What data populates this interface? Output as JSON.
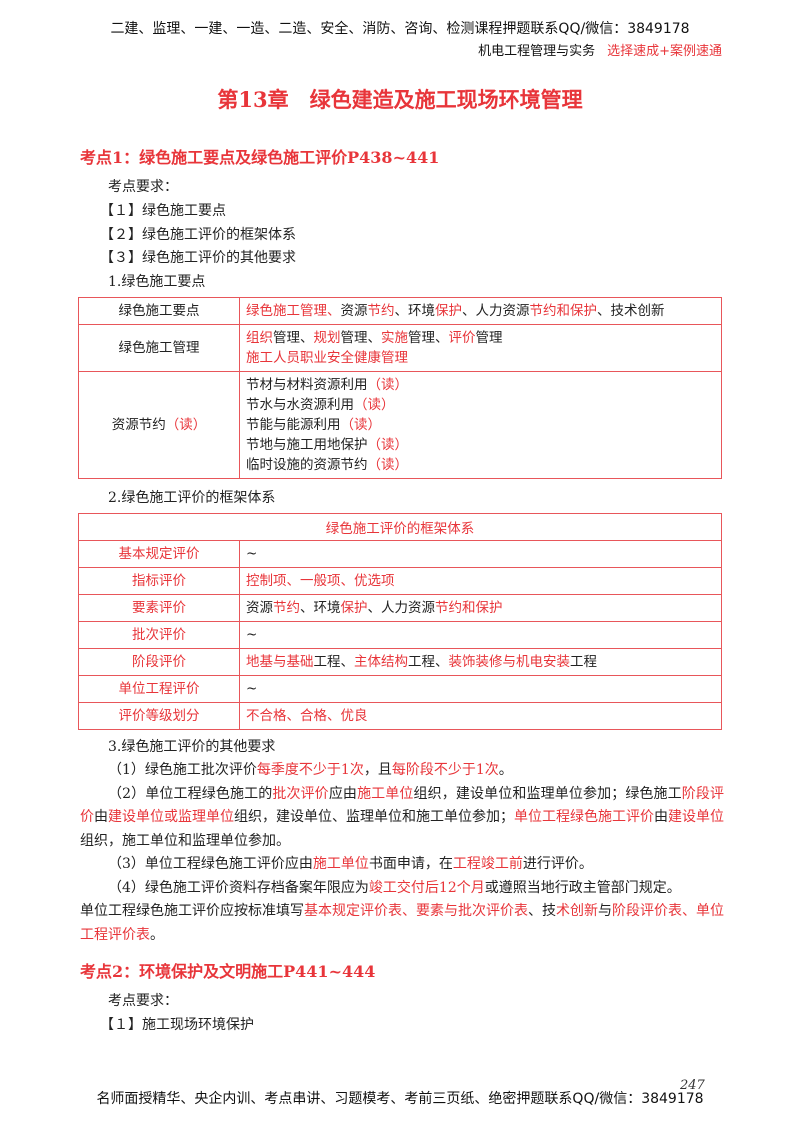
{
  "header": {
    "line1": "二建、监理、一建、一造、二造、安全、消防、咨询、检测课程押题联系QQ/微信：3849178",
    "subject": "机电工程管理与实务",
    "slogan": "选择速成+案例速通"
  },
  "chapter_title": "第13章　绿色建造及施工现场环境管理",
  "section1": {
    "heading": "考点1：绿色施工要点及绿色施工评价P438~441",
    "req_label": "考点要求：",
    "reqs": [
      "【１】绿色施工要点",
      "【２】绿色施工评价的框架体系",
      "【３】绿色施工评价的其他要求"
    ],
    "sub1": "1.绿色施工要点",
    "table1": [
      {
        "label": [
          [
            "绿色施工要点",
            0
          ]
        ],
        "lines": [
          [
            [
              "绿色施工管理、",
              1
            ],
            [
              "资源",
              0
            ],
            [
              "节约",
              1
            ],
            [
              "、环境",
              0
            ],
            [
              "保护",
              1
            ],
            [
              "、人力资源",
              0
            ],
            [
              "节约和保护",
              1
            ],
            [
              "、技术创新",
              0
            ]
          ]
        ]
      },
      {
        "label": [
          [
            "绿色施工管理",
            0
          ]
        ],
        "lines": [
          [
            [
              "组织",
              1
            ],
            [
              "管理、",
              0
            ],
            [
              "规划",
              1
            ],
            [
              "管理、",
              0
            ],
            [
              "实施",
              1
            ],
            [
              "管理、",
              0
            ],
            [
              "评价",
              1
            ],
            [
              "管理",
              0
            ]
          ],
          [
            [
              "施工人员职业安全健康管理",
              1
            ]
          ]
        ]
      },
      {
        "label": [
          [
            "资源节约",
            0
          ],
          [
            "（读）",
            1
          ]
        ],
        "lines": [
          [
            [
              "节材与材料资源利用",
              0
            ],
            [
              "（读）",
              1
            ]
          ],
          [
            [
              "节水与水资源利用",
              0
            ],
            [
              "（读）",
              1
            ]
          ],
          [
            [
              "节能与能源利用",
              0
            ],
            [
              "（读）",
              1
            ]
          ],
          [
            [
              "节地与施工用地保护",
              0
            ],
            [
              "（读）",
              1
            ]
          ],
          [
            [
              "临时设施的资源节约",
              0
            ],
            [
              "（读）",
              1
            ]
          ]
        ]
      }
    ],
    "sub2": "2.绿色施工评价的框架体系",
    "table2_title": "绿色施工评价的框架体系",
    "table2": [
      {
        "label": "基本规定评价",
        "value": [
          [
            "~",
            0
          ]
        ]
      },
      {
        "label": "指标评价",
        "value": [
          [
            "控制项、一般项、优选项",
            1
          ]
        ]
      },
      {
        "label": "要素评价",
        "value": [
          [
            "资源",
            0
          ],
          [
            "节约",
            1
          ],
          [
            "、环境",
            0
          ],
          [
            "保护",
            1
          ],
          [
            "、人力资源",
            0
          ],
          [
            "节约和保护",
            1
          ]
        ]
      },
      {
        "label": "批次评价",
        "value": [
          [
            "~",
            0
          ]
        ]
      },
      {
        "label": "阶段评价",
        "value": [
          [
            "地基与基础",
            1
          ],
          [
            "工程、",
            0
          ],
          [
            "主体结构",
            1
          ],
          [
            "工程、",
            0
          ],
          [
            "装饰装修与机电安装",
            1
          ],
          [
            "工程",
            0
          ]
        ]
      },
      {
        "label": "单位工程评价",
        "value": [
          [
            "~",
            0
          ]
        ]
      },
      {
        "label": "评价等级划分",
        "value": [
          [
            "不合格、合格、优良",
            1
          ]
        ]
      }
    ],
    "sub3": "3.绿色施工评价的其他要求",
    "paras": [
      [
        [
          "（1）绿色施工批次评价",
          0
        ],
        [
          "每季度不少于1次",
          1
        ],
        [
          "，且",
          0
        ],
        [
          "每阶段不少于1次",
          1
        ],
        [
          "。",
          0
        ]
      ],
      [
        [
          "（2）单位工程绿色施工的",
          0
        ],
        [
          "批次评价",
          1
        ],
        [
          "应由",
          0
        ],
        [
          "施工单位",
          1
        ],
        [
          "组织，建设单位和监理单位参加；绿色施工",
          0
        ],
        [
          "阶段评价",
          1
        ],
        [
          "由",
          0
        ],
        [
          "建设单位或监理单位",
          1
        ],
        [
          "组织，建设单位、监理单位和施工单位参加；",
          0
        ],
        [
          "单位工程绿色施工评价",
          1
        ],
        [
          "由",
          0
        ],
        [
          "建设单位",
          1
        ],
        [
          "组织，施工单位和监理单位参加。",
          0
        ]
      ],
      [
        [
          "（3）单位工程绿色施工评价应由",
          0
        ],
        [
          "施工单位",
          1
        ],
        [
          "书面申请，在",
          0
        ],
        [
          "工程竣工前",
          1
        ],
        [
          "进行评价。",
          0
        ]
      ],
      [
        [
          "（4）绿色施工评价资料存档备案年限应为",
          0
        ],
        [
          "竣工交付后12个月",
          1
        ],
        [
          "或遵照当地行政主管部门规定。",
          0
        ]
      ],
      [
        [
          "单位工程绿色施工评价应按标准填写",
          0
        ],
        [
          "基本规定评价表、要素与批次评价表",
          1
        ],
        [
          "、技",
          0
        ],
        [
          "术创新",
          1
        ],
        [
          "与",
          0
        ],
        [
          "阶段评价表、单位工程评价表",
          1
        ],
        [
          "。",
          0
        ]
      ]
    ]
  },
  "section2": {
    "heading": "考点2：环境保护及文明施工P441~444",
    "req_label": "考点要求：",
    "reqs": [
      "【１】施工现场环境保护"
    ]
  },
  "footer": {
    "text": "名师面授精华、央企内训、考点串讲、习题模考、考前三页纸、绝密押题联系QQ/微信：3849178",
    "page_number": "247"
  },
  "colors": {
    "accent": "#e8353a",
    "border": "#e8565a"
  }
}
